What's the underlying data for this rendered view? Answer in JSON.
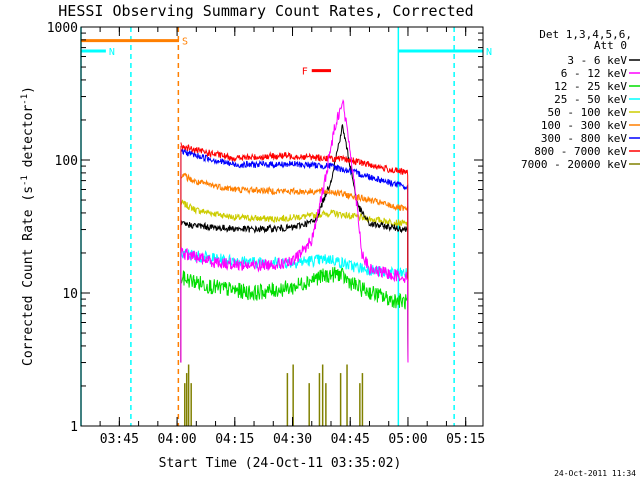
{
  "chart_data": {
    "type": "line",
    "title": "HESSI Observing Summary Count Rates, Corrected",
    "xlabel": "Start Time (24-Oct-11 03:35:02)",
    "ylabel_main": "Corrected Count Rate (s",
    "ylabel_exp1": "-1",
    "ylabel_mid": " detector",
    "ylabel_exp2": "-1",
    "ylabel_end": ")",
    "y_scale": "log",
    "ylim": [
      1,
      1000
    ],
    "xlim": [
      "03:35:02",
      "05:19:30"
    ],
    "x_ticks": [
      "03:45",
      "04:00",
      "04:15",
      "04:30",
      "04:45",
      "05:00",
      "05:15"
    ],
    "y_ticks": [
      "1",
      "10",
      "100",
      "1000"
    ],
    "legend_header": [
      "Det 1,3,4,5,6,",
      "Att 0"
    ],
    "legend_position": "right",
    "timestamp": "24-Oct-2011 11:34",
    "series": [
      {
        "name": "3 - 6 keV",
        "color": "#000000",
        "points": [
          [
            "04:01",
            33
          ],
          [
            "04:10",
            31
          ],
          [
            "04:20",
            30
          ],
          [
            "04:30",
            31
          ],
          [
            "04:36",
            35
          ],
          [
            "04:40",
            70
          ],
          [
            "04:43",
            180
          ],
          [
            "04:45",
            90
          ],
          [
            "04:47",
            45
          ],
          [
            "04:50",
            33
          ],
          [
            "05:00",
            30
          ]
        ]
      },
      {
        "name": "6 - 12 keV",
        "color": "#ff00ff",
        "points": [
          [
            "04:01",
            20
          ],
          [
            "04:10",
            17
          ],
          [
            "04:20",
            16
          ],
          [
            "04:30",
            17
          ],
          [
            "04:35",
            25
          ],
          [
            "04:38",
            60
          ],
          [
            "04:41",
            180
          ],
          [
            "04:43",
            280
          ],
          [
            "04:45",
            120
          ],
          [
            "04:47",
            40
          ],
          [
            "04:48",
            20
          ],
          [
            "04:50",
            15
          ],
          [
            "05:00",
            13
          ]
        ]
      },
      {
        "name": "12 - 25 keV",
        "color": "#00dd00",
        "points": [
          [
            "04:01",
            13
          ],
          [
            "04:10",
            11
          ],
          [
            "04:20",
            10
          ],
          [
            "04:30",
            11
          ],
          [
            "04:36",
            13
          ],
          [
            "04:42",
            14
          ],
          [
            "04:47",
            11
          ],
          [
            "04:55",
            9
          ],
          [
            "05:00",
            8.5
          ]
        ]
      },
      {
        "name": "25 - 50 keV",
        "color": "#00ffff",
        "points": [
          [
            "04:01",
            20
          ],
          [
            "04:10",
            18
          ],
          [
            "04:20",
            17
          ],
          [
            "04:30",
            17
          ],
          [
            "04:40",
            18
          ],
          [
            "04:45",
            16
          ],
          [
            "04:55",
            14
          ],
          [
            "05:00",
            14
          ]
        ]
      },
      {
        "name": "50 - 100 keV",
        "color": "#cccc00",
        "points": [
          [
            "04:01",
            48
          ],
          [
            "04:05",
            42
          ],
          [
            "04:15",
            37
          ],
          [
            "04:25",
            36
          ],
          [
            "04:35",
            38
          ],
          [
            "04:40",
            40
          ],
          [
            "04:50",
            36
          ],
          [
            "05:00",
            33
          ]
        ]
      },
      {
        "name": "100 - 300 keV",
        "color": "#ff7f00",
        "points": [
          [
            "04:01",
            78
          ],
          [
            "04:05",
            68
          ],
          [
            "04:15",
            60
          ],
          [
            "04:30",
            58
          ],
          [
            "04:40",
            58
          ],
          [
            "04:50",
            50
          ],
          [
            "05:00",
            42
          ]
        ]
      },
      {
        "name": "300 - 800 keV",
        "color": "#0000ff",
        "points": [
          [
            "04:01",
            118
          ],
          [
            "04:05",
            108
          ],
          [
            "04:15",
            92
          ],
          [
            "04:30",
            93
          ],
          [
            "04:40",
            90
          ],
          [
            "04:50",
            75
          ],
          [
            "05:00",
            62
          ]
        ]
      },
      {
        "name": "800 - 7000 keV",
        "color": "#ff0000",
        "points": [
          [
            "04:01",
            128
          ],
          [
            "04:05",
            118
          ],
          [
            "04:15",
            103
          ],
          [
            "04:28",
            108
          ],
          [
            "04:35",
            105
          ],
          [
            "04:45",
            100
          ],
          [
            "04:55",
            85
          ],
          [
            "05:00",
            80
          ]
        ]
      },
      {
        "name": "7000 - 20000 keV",
        "color": "#808000",
        "points": []
      }
    ],
    "flags": [
      {
        "label": "S",
        "color": "#ff7f00",
        "start": "03:35:02",
        "end": "04:00:30",
        "y": 790
      },
      {
        "label": "N",
        "color": "#00ffff",
        "start": "03:35:02",
        "end": "03:41:30",
        "y": 660
      },
      {
        "label": "N",
        "color": "#00ffff",
        "start": "04:57:30",
        "end": "05:19:30",
        "y": 660
      },
      {
        "label": "F",
        "color": "#ff0000",
        "start": "04:35:00",
        "end": "04:40:00",
        "y": 470
      }
    ],
    "vertical_markers": [
      {
        "time": "03:35:02",
        "color": "#00ffff",
        "style": "solid"
      },
      {
        "time": "03:48:00",
        "color": "#00ffff",
        "style": "dashed"
      },
      {
        "time": "04:00:20",
        "color": "#ff7f00",
        "style": "dashed"
      },
      {
        "time": "04:57:30",
        "color": "#00ffff",
        "style": "solid"
      },
      {
        "time": "05:12:00",
        "color": "#00ffff",
        "style": "dashed"
      }
    ],
    "spikes_7000_20000": [
      "04:02:00",
      "04:02:30",
      "04:03:00",
      "04:03:40",
      "04:28:40",
      "04:30:10",
      "04:34:20",
      "04:37:00",
      "04:37:50",
      "04:38:40",
      "04:42:30",
      "04:44:10",
      "04:47:30",
      "04:48:10"
    ]
  }
}
